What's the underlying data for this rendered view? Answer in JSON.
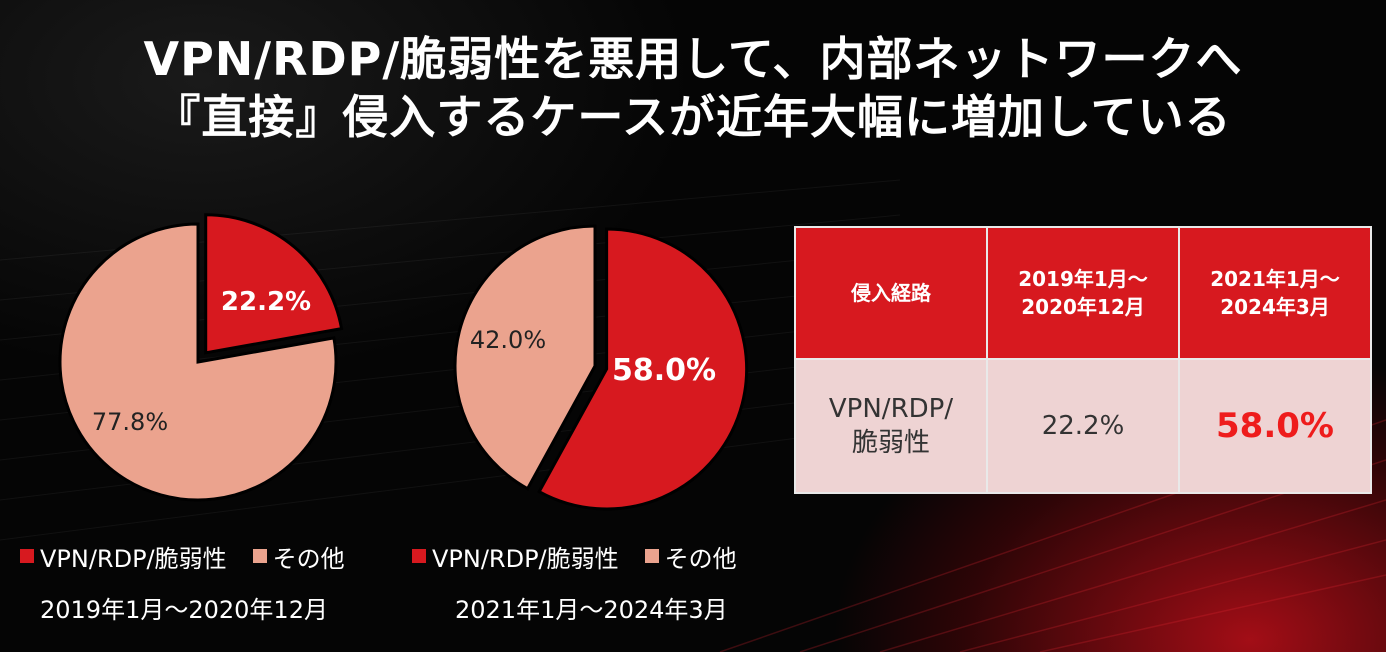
{
  "title": {
    "line1": "VPN/RDP/脆弱性を悪用して、内部ネットワークへ",
    "line2": "『直接』侵入するケースが近年大幅に増加している"
  },
  "colors": {
    "vpn": "#d7191f",
    "other": "#eba38e",
    "table_header": "#d7191f",
    "table_cell": "#eed3d3",
    "highlight": "#ee1c1c"
  },
  "chart_data": [
    {
      "type": "pie",
      "period": "2019年1月～2020年12月",
      "slices": [
        {
          "name": "VPN/RDP/脆弱性",
          "value": 22.2,
          "label": "22.2%",
          "exploded": true
        },
        {
          "name": "その他",
          "value": 77.8,
          "label": "77.8%"
        }
      ],
      "legend": [
        "VPN/RDP/脆弱性",
        "その他"
      ]
    },
    {
      "type": "pie",
      "period": "2021年1月～2024年3月",
      "slices": [
        {
          "name": "VPN/RDP/脆弱性",
          "value": 58.0,
          "label": "58.0%",
          "exploded": true
        },
        {
          "name": "その他",
          "value": 42.0,
          "label": "42.0%"
        }
      ],
      "legend": [
        "VPN/RDP/脆弱性",
        "その他"
      ]
    }
  ],
  "table": {
    "headers": [
      "侵入経路",
      "2019年1月～\n2020年12月",
      "2021年1月～\n2024年3月"
    ],
    "row": {
      "label": "VPN/RDP/\n脆弱性",
      "v1": "22.2%",
      "v2": "58.0%"
    }
  }
}
